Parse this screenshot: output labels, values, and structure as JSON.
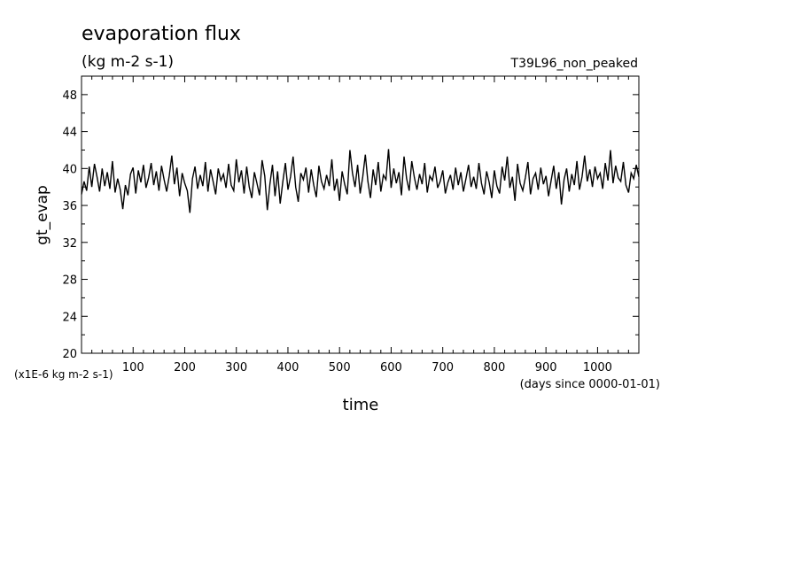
{
  "chart_data": {
    "type": "line",
    "title": "evaporation flux",
    "subtitle": "(kg m-2 s-1)",
    "case_label": "T39L96_non_peaked",
    "xlabel": "time",
    "xunit": "(days since 0000-01-01)",
    "ylabel": "gt_evap",
    "yunit": "(x1E-6 kg m-2 s-1)",
    "xlim": [
      0,
      1080
    ],
    "ylim": [
      20,
      50
    ],
    "x_ticks": [
      100,
      200,
      300,
      400,
      500,
      600,
      700,
      800,
      900,
      1000
    ],
    "x_tick_labels": [
      "100",
      "200",
      "300",
      "400",
      "500",
      "600",
      "700",
      "800",
      "900",
      "1000"
    ],
    "y_ticks": [
      20,
      24,
      28,
      32,
      36,
      40,
      44,
      48
    ],
    "y_tick_labels": [
      "20",
      "24",
      "28",
      "32",
      "36",
      "40",
      "44",
      "48"
    ],
    "grid": false,
    "line_color": "#000000",
    "series": [
      {
        "x": [
          0,
          5,
          10,
          15,
          20,
          25,
          30,
          35,
          40,
          45,
          50,
          55,
          60,
          65,
          70,
          75,
          80,
          85,
          90,
          95,
          100,
          105,
          110,
          115,
          120,
          125,
          130,
          135,
          140,
          145,
          150,
          155,
          160,
          165,
          170,
          175,
          180,
          185,
          190,
          195,
          200,
          205,
          210,
          215,
          220,
          225,
          230,
          235,
          240,
          245,
          250,
          255,
          260,
          265,
          270,
          275,
          280,
          285,
          290,
          295,
          300,
          305,
          310,
          315,
          320,
          325,
          330,
          335,
          340,
          345,
          350,
          355,
          360,
          365,
          370,
          375,
          380,
          385,
          390,
          395,
          400,
          405,
          410,
          415,
          420,
          425,
          430,
          435,
          440,
          445,
          450,
          455,
          460,
          465,
          470,
          475,
          480,
          485,
          490,
          495,
          500,
          505,
          510,
          515,
          520,
          525,
          530,
          535,
          540,
          545,
          550,
          555,
          560,
          565,
          570,
          575,
          580,
          585,
          590,
          595,
          600,
          605,
          610,
          615,
          620,
          625,
          630,
          635,
          640,
          645,
          650,
          655,
          660,
          665,
          670,
          675,
          680,
          685,
          690,
          695,
          700,
          705,
          710,
          715,
          720,
          725,
          730,
          735,
          740,
          745,
          750,
          755,
          760,
          765,
          770,
          775,
          780,
          785,
          790,
          795,
          800,
          805,
          810,
          815,
          820,
          825,
          830,
          835,
          840,
          845,
          850,
          855,
          860,
          865,
          870,
          875,
          880,
          885,
          890,
          895,
          900,
          905,
          910,
          915,
          920,
          925,
          930,
          935,
          940,
          945,
          950,
          955,
          960,
          965,
          970,
          975,
          980,
          985,
          990,
          995,
          1000,
          1005,
          1010,
          1015,
          1020,
          1025,
          1030,
          1035,
          1040,
          1045,
          1050,
          1055,
          1060,
          1065,
          1070,
          1075,
          1080
        ],
        "values": [
          37.2,
          38.6,
          37.6,
          40.2,
          38.0,
          40.5,
          39.1,
          37.5,
          40.0,
          38.1,
          39.6,
          37.8,
          40.8,
          37.4,
          38.9,
          37.7,
          35.6,
          38.2,
          37.1,
          39.4,
          40.1,
          37.3,
          39.8,
          38.5,
          40.4,
          37.9,
          39.0,
          40.6,
          38.2,
          39.7,
          37.6,
          40.3,
          38.8,
          37.5,
          39.2,
          41.4,
          38.3,
          40.1,
          37.0,
          39.5,
          38.4,
          37.6,
          35.2,
          38.9,
          40.2,
          37.8,
          39.3,
          38.1,
          40.7,
          37.5,
          39.9,
          38.6,
          37.2,
          40.0,
          38.7,
          39.4,
          37.9,
          40.5,
          38.2,
          37.6,
          41.0,
          38.5,
          39.8,
          37.3,
          40.2,
          38.0,
          36.8,
          39.6,
          38.4,
          37.1,
          40.9,
          39.2,
          35.5,
          38.3,
          40.4,
          37.0,
          39.7,
          36.2,
          38.5,
          40.6,
          37.7,
          39.1,
          41.3,
          38.0,
          36.4,
          39.5,
          38.8,
          40.1,
          37.4,
          39.9,
          38.2,
          36.9,
          40.3,
          38.6,
          37.8,
          39.3,
          38.1,
          41.0,
          37.6,
          38.9,
          36.5,
          39.7,
          38.3,
          37.2,
          42.0,
          39.5,
          38.0,
          40.4,
          37.3,
          39.1,
          41.5,
          38.6,
          36.8,
          39.9,
          38.2,
          40.7,
          37.5,
          39.3,
          38.8,
          42.1,
          37.9,
          40.0,
          38.4,
          39.6,
          37.1,
          41.3,
          38.9,
          37.6,
          40.8,
          39.0,
          37.7,
          39.4,
          38.3,
          40.6,
          37.4,
          39.2,
          38.7,
          40.2,
          37.9,
          38.6,
          39.8,
          37.3,
          38.5,
          39.3,
          37.7,
          40.1,
          38.2,
          39.6,
          37.5,
          38.9,
          40.4,
          38.0,
          39.1,
          37.8,
          40.6,
          38.4,
          37.2,
          39.7,
          38.5,
          36.8,
          39.8,
          38.1,
          37.3,
          40.2,
          38.7,
          41.3,
          37.9,
          39.1,
          36.5,
          40.5,
          38.4,
          37.6,
          39.0,
          40.7,
          37.2,
          38.9,
          39.5,
          37.7,
          40.1,
          38.3,
          39.2,
          37.0,
          38.7,
          40.3,
          37.8,
          39.6,
          36.1,
          38.8,
          40.0,
          37.5,
          39.4,
          38.2,
          40.8,
          37.7,
          39.1,
          41.4,
          38.6,
          39.9,
          38.0,
          40.2,
          38.9,
          39.5,
          37.8,
          40.6,
          38.7,
          42.0,
          38.4,
          40.3,
          39.0,
          38.6,
          40.7,
          38.2,
          37.4,
          39.5,
          38.9,
          40.4,
          39.1
        ]
      }
    ]
  }
}
